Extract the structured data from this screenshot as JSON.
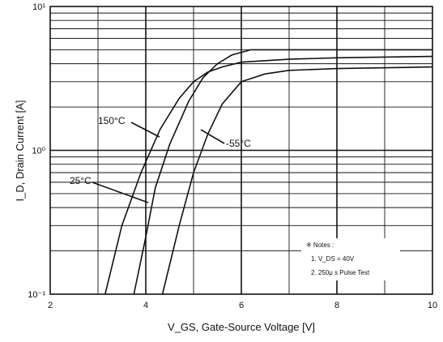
{
  "chart_data": {
    "type": "line",
    "xlabel": "V_GS, Gate-Source Voltage [V]",
    "ylabel": "I_D, Drain Current [A]",
    "xlim": [
      2,
      10
    ],
    "ylim": [
      0.1,
      10
    ],
    "yscale": "log",
    "grid": true,
    "x_ticks": [
      "2",
      "4",
      "6",
      "8",
      "10"
    ],
    "y_ticks": [
      {
        "value": 10,
        "label": "10¹"
      },
      {
        "value": 1,
        "label": "10⁰"
      },
      {
        "value": 0.1,
        "label": "10⁻¹"
      }
    ],
    "series": [
      {
        "name": "150°C",
        "x": [
          3.15,
          3.5,
          3.9,
          4.3,
          4.7,
          5.0,
          5.3,
          5.6,
          6.0,
          7.0,
          8.0,
          10.0
        ],
        "y": [
          0.1,
          0.3,
          0.7,
          1.4,
          2.3,
          3.0,
          3.5,
          3.8,
          4.1,
          4.3,
          4.4,
          4.5
        ]
      },
      {
        "name": "25°C",
        "x": [
          3.75,
          4.0,
          4.2,
          4.5,
          4.9,
          5.2,
          5.5,
          5.8,
          6.2,
          7.0,
          8.0,
          10.0
        ],
        "y": [
          0.1,
          0.25,
          0.55,
          1.1,
          2.2,
          3.2,
          4.0,
          4.6,
          5.0,
          5.0,
          5.0,
          5.0
        ]
      },
      {
        "name": "-55°C",
        "x": [
          4.35,
          4.7,
          5.0,
          5.3,
          5.6,
          6.0,
          6.5,
          7.0,
          8.0,
          10.0
        ],
        "y": [
          0.1,
          0.3,
          0.7,
          1.3,
          2.1,
          3.0,
          3.4,
          3.6,
          3.7,
          3.8
        ]
      }
    ],
    "notes": {
      "header": "※ Notes :",
      "line1": "1. V_DS = 40V",
      "line2": "2. 250μ s Pulse Test"
    }
  }
}
